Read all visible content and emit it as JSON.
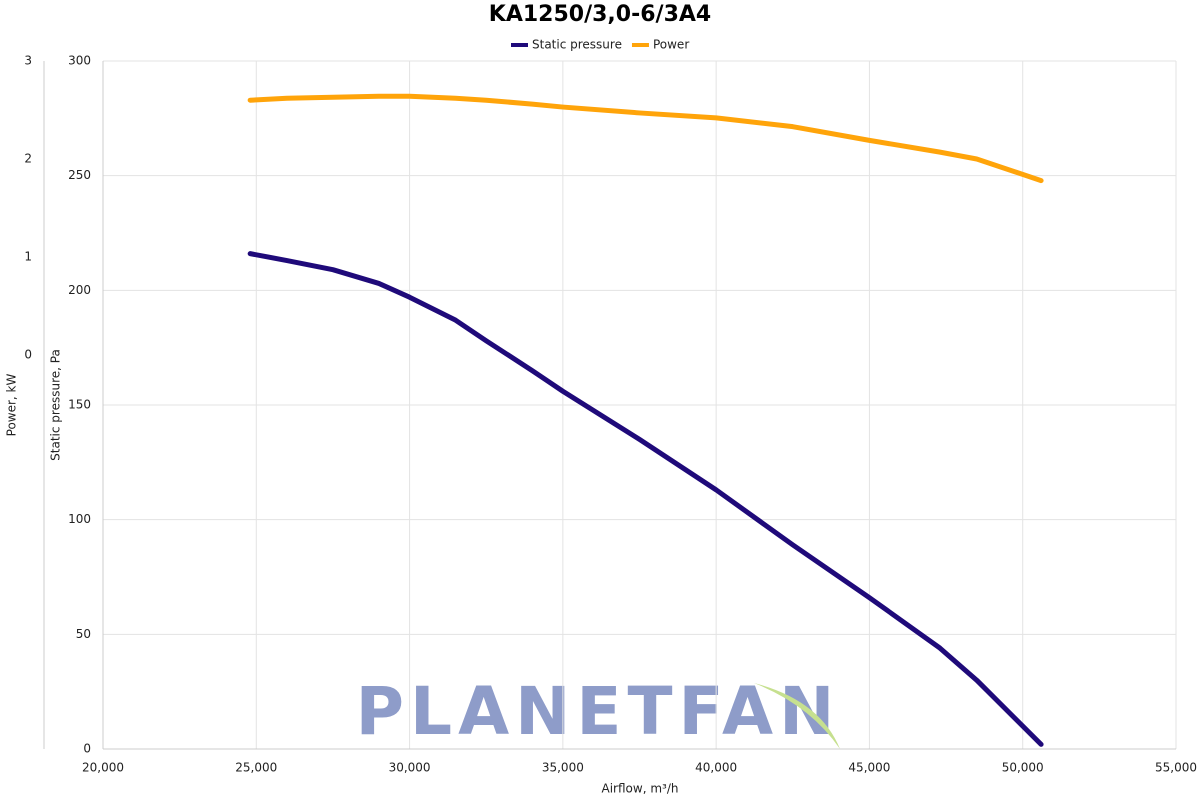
{
  "chart_data": {
    "type": "line",
    "title": "KA1250/3,0-6/3A4",
    "watermark": "PLANETFAN",
    "x_label": "Airflow, m³/h",
    "y_label": "Static pressure, Pa",
    "y2_label": "Power, kW",
    "x": [
      24800,
      26000,
      27500,
      29000,
      30000,
      31500,
      32500,
      34000,
      35000,
      37500,
      40000,
      42500,
      45000,
      47300,
      48500,
      50600
    ],
    "series": [
      {
        "name": "Static pressure",
        "color": "#1f0a7a",
        "values": [
          216,
          213,
          209,
          203,
          197,
          187,
          178,
          165,
          156,
          135,
          113,
          89,
          66,
          44,
          30,
          2
        ]
      },
      {
        "name": "Power",
        "color": "#ffa40a",
        "axis": "y2",
        "values": [
          2.6,
          2.62,
          2.63,
          2.64,
          2.64,
          2.62,
          2.6,
          2.56,
          2.53,
          2.47,
          2.42,
          2.33,
          2.19,
          2.07,
          2.0,
          1.78
        ]
      }
    ],
    "xlim": [
      20000,
      55000
    ],
    "xticks": [
      {
        "value": 20000,
        "label": "20,000"
      },
      {
        "value": 25000,
        "label": "25,000"
      },
      {
        "value": 30000,
        "label": "30,000"
      },
      {
        "value": 35000,
        "label": "35,000"
      },
      {
        "value": 40000,
        "label": "40,000"
      },
      {
        "value": 45000,
        "label": "45,000"
      },
      {
        "value": 50000,
        "label": "50,000"
      },
      {
        "value": 55000,
        "label": "55,000"
      }
    ],
    "ylim": [
      0,
      300
    ],
    "yticks": [
      0,
      50,
      100,
      150,
      200,
      250,
      300
    ],
    "y2lim": [
      -4.02,
      3
    ],
    "y2ticks": [
      0,
      1,
      2,
      3
    ],
    "grid": true,
    "legend": "top"
  }
}
